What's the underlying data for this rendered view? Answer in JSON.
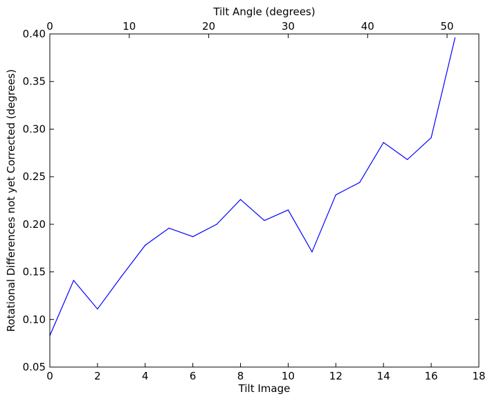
{
  "chart_data": {
    "type": "line",
    "xlabel": "Tilt Image",
    "ylabel": "Rotational Differences not yet Corrected (degrees)",
    "x2label": "Tilt Angle (degrees)",
    "xlim": [
      0,
      18
    ],
    "ylim": [
      0.05,
      0.4
    ],
    "x2lim": [
      0,
      54
    ],
    "xticks": [
      0,
      2,
      4,
      6,
      8,
      10,
      12,
      14,
      16,
      18
    ],
    "yticks": [
      0.05,
      0.1,
      0.15,
      0.2,
      0.25,
      0.3,
      0.35,
      0.4
    ],
    "x2ticks": [
      0,
      10,
      20,
      30,
      40,
      50
    ],
    "xtick_labels": [
      "0",
      "2",
      "4",
      "6",
      "8",
      "10",
      "12",
      "14",
      "16",
      "18"
    ],
    "ytick_labels": [
      "0.05",
      "0.10",
      "0.15",
      "0.20",
      "0.25",
      "0.30",
      "0.35",
      "0.40"
    ],
    "x2tick_labels": [
      "0",
      "10",
      "20",
      "30",
      "40",
      "50"
    ],
    "grid": false,
    "line_color": "#0000ff",
    "series": [
      {
        "x": [
          0,
          1,
          2,
          3,
          4,
          5,
          6,
          7,
          8,
          9,
          10,
          11,
          12,
          13,
          14,
          15,
          16,
          17
        ],
        "values": [
          0.083,
          0.141,
          0.111,
          0.145,
          0.178,
          0.196,
          0.187,
          0.2,
          0.226,
          0.204,
          0.215,
          0.171,
          0.231,
          0.244,
          0.286,
          0.268,
          0.291,
          0.396
        ]
      }
    ]
  }
}
